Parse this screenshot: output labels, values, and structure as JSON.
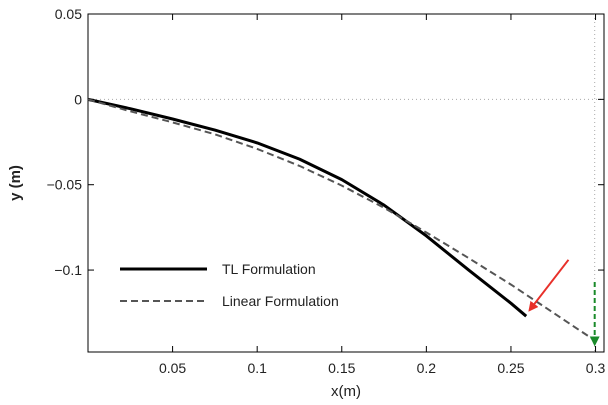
{
  "chart_data": {
    "type": "line",
    "xlabel": "x(m)",
    "ylabel": "y (m)",
    "xlim": [
      0,
      0.305
    ],
    "ylim": [
      -0.148,
      0.05
    ],
    "x_ticks": [
      0.05,
      0.1,
      0.15,
      0.2,
      0.25,
      0.3
    ],
    "x_tick_labels": [
      "0.05",
      "0.1",
      "0.15",
      "0.2",
      "0.25",
      "0.3"
    ],
    "y_ticks": [
      0.05,
      0,
      -0.05,
      -0.1
    ],
    "y_tick_labels": [
      "0.05",
      "0",
      "−0.05",
      "−0.1"
    ],
    "grid": "dotted reference lines at y=0 and x=0.3",
    "legend_position": "lower-left",
    "series": [
      {
        "name": "TL Formulation",
        "style": "solid",
        "color": "#000000",
        "x": [
          0,
          0.025,
          0.05,
          0.075,
          0.1,
          0.125,
          0.15,
          0.175,
          0.2,
          0.225,
          0.25,
          0.259
        ],
        "y": [
          0,
          -0.0055,
          -0.0115,
          -0.018,
          -0.0255,
          -0.035,
          -0.047,
          -0.062,
          -0.08,
          -0.1,
          -0.1195,
          -0.127
        ]
      },
      {
        "name": "Linear Formulation",
        "style": "dashed",
        "color": "#555555",
        "x": [
          0,
          0.025,
          0.05,
          0.075,
          0.1,
          0.125,
          0.15,
          0.175,
          0.2,
          0.225,
          0.25,
          0.275,
          0.3
        ],
        "y": [
          0,
          -0.007,
          -0.0135,
          -0.0205,
          -0.029,
          -0.039,
          -0.0505,
          -0.0635,
          -0.078,
          -0.093,
          -0.1085,
          -0.125,
          -0.1415
        ]
      }
    ],
    "annotations": [
      {
        "kind": "arrow",
        "color": "#e8302a",
        "from": [
          0.284,
          -0.094
        ],
        "to": [
          0.261,
          -0.1235
        ]
      },
      {
        "kind": "dashed-arrow",
        "color": "#1a8a2a",
        "from": [
          0.2995,
          -0.107
        ],
        "to": [
          0.2995,
          -0.1435
        ]
      }
    ]
  }
}
